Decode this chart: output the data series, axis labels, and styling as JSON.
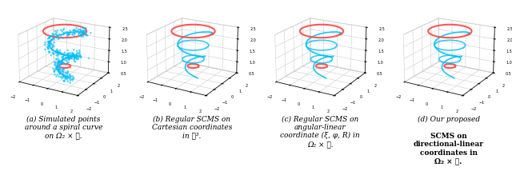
{
  "figsize": [
    6.4,
    2.3
  ],
  "dpi": 100,
  "background_color": "#ffffff",
  "panels": [
    {
      "label": "(a)",
      "caption_lines": [
        "(a) Simulated points",
        "around a spiral curve",
        "on Ω₂ × ℝ."
      ],
      "has_scatter": true,
      "scatter_color": "#00bfff",
      "curve_color": "#ff4444",
      "spiral_color": "#00bfff"
    },
    {
      "label": "(b)",
      "caption_lines": [
        "(b) Regular SCMS on",
        "Cartesian coordinates",
        "in ℝ³."
      ],
      "has_scatter": false,
      "scatter_color": null,
      "curve_color": "#ff4444",
      "spiral_color": "#00bfff"
    },
    {
      "label": "(c)",
      "caption_lines": [
        "(c) Regular SCMS on",
        "angular-linear",
        "coordinate (ξ, φ, R) in",
        "Ω₂ × ℝ."
      ],
      "has_scatter": false,
      "scatter_color": null,
      "curve_color": "#ff4444",
      "spiral_color": "#00bfff"
    },
    {
      "label": "(d)",
      "caption_lines": [
        "(d) Our proposed",
        "SCMS on",
        "directional-linear",
        "coordinates in",
        "Ω₂ × ℝ."
      ],
      "bold_start": 1,
      "has_scatter": false,
      "scatter_color": null,
      "curve_color": "#ff4444",
      "spiral_color": "#00bfff"
    }
  ],
  "xlim": [
    -2,
    2
  ],
  "ylim": [
    -2,
    2
  ],
  "zlim": [
    0.5,
    2.5
  ],
  "elev": 20,
  "azim": -60
}
